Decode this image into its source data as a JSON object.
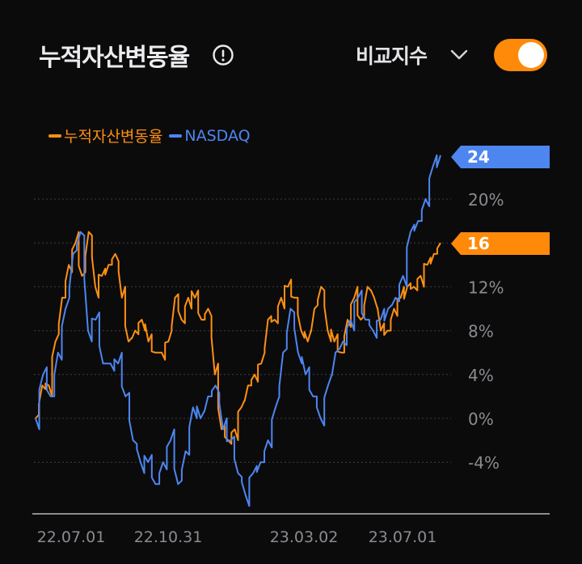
{
  "header": {
    "title": "누적자산변동율",
    "info_icon": "info-circle-icon",
    "compare_label": "비교지수",
    "compare_icon": "chevron-down-icon",
    "toggle_on": true
  },
  "colors": {
    "background": "#0b0b0c",
    "accent": "#ff8a0a",
    "asset_series": "#ff9013",
    "index_series": "#4e86f0",
    "grid": "#3e3e42",
    "axis_text": "#8b8b90"
  },
  "chart_data": {
    "type": "line",
    "x_tick_labels": [
      "22.07.01",
      "22.10.31",
      "23.03.02",
      "23.07.01"
    ],
    "y_ticks": [
      -4,
      0,
      4,
      8,
      12,
      16,
      20
    ],
    "y_tick_labels": [
      "-4%",
      "0%",
      "4%",
      "8%",
      "12%",
      "",
      "20%"
    ],
    "ylim": [
      -8.2,
      24.6
    ],
    "grid": true,
    "legend": "top-left",
    "series": [
      {
        "name": "누적자산변동율",
        "last_value_label": "16",
        "values": [
          0,
          3,
          3,
          7,
          11,
          14,
          16,
          13,
          17,
          12,
          13,
          14,
          15,
          11,
          7,
          8,
          9,
          7,
          6,
          6,
          7,
          11,
          9,
          11,
          11,
          9,
          10,
          4,
          -1,
          -2,
          -1,
          1,
          3,
          4,
          5,
          9,
          9,
          11,
          12,
          11,
          8,
          7,
          10,
          12,
          8,
          7,
          6,
          9,
          11,
          9,
          12,
          11,
          8,
          8,
          10,
          11,
          12,
          12,
          13,
          14,
          15,
          16
        ]
      },
      {
        "name": "NASDAQ",
        "last_value_label": "24",
        "values": [
          0,
          4,
          2,
          6,
          10,
          15,
          17,
          8,
          9,
          5,
          5,
          5,
          2,
          -2,
          -4,
          -4,
          -6,
          -4,
          -2,
          -6,
          -3,
          1,
          0,
          2,
          3,
          -1,
          -2,
          -5,
          -7,
          -5,
          -4,
          -2,
          1,
          6,
          10,
          6,
          4,
          2,
          0,
          3,
          6,
          7,
          9,
          11,
          9,
          8,
          9,
          10,
          11,
          13,
          17,
          18,
          20,
          23,
          24
        ]
      }
    ]
  }
}
